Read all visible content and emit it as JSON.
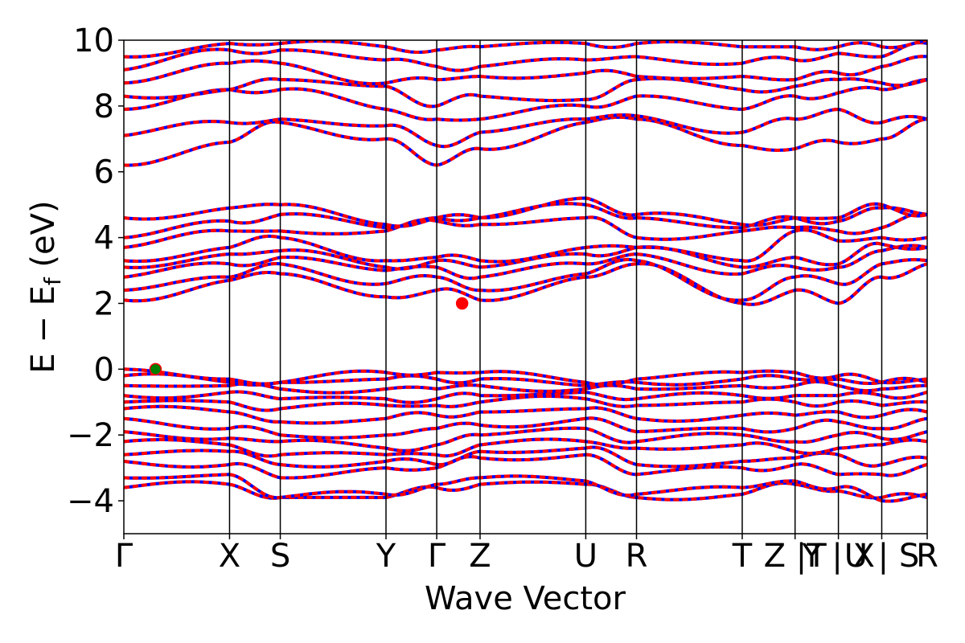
{
  "chart_data": {
    "type": "line",
    "title": "",
    "xlabel": "Wave Vector",
    "ylabel_main": "E − E",
    "ylabel_sub": "f",
    "ylabel_unit": " (eV)",
    "ylim": [
      -5,
      10
    ],
    "yticks": [
      10,
      8,
      6,
      4,
      2,
      0,
      -2,
      -4
    ],
    "ytick_labels": [
      "10",
      "8",
      "6",
      "4",
      "2",
      "0",
      "−2",
      "−4"
    ],
    "kpath_positions": [
      0,
      1.0,
      1.48,
      2.48,
      2.96,
      3.37,
      4.37,
      4.85,
      5.85,
      6.35,
      6.76,
      7.17,
      7.6
    ],
    "kpath_labels": [
      "Γ",
      "X",
      "S",
      "Y",
      "Γ",
      "Z",
      "U",
      "R",
      "T",
      "Z |T",
      "Y | X",
      "U | S",
      "R"
    ],
    "xlim": [
      0,
      7.6
    ],
    "grid": false,
    "legend": "none",
    "colors": {
      "band_primary": "#ff0000",
      "band_secondary": "#0000ff",
      "vbm_marker": "#008000",
      "cbm_marker": "#ff0000",
      "kline": "#000000"
    },
    "markers": [
      {
        "name": "VBM",
        "x": 0.3,
        "y": 0.0,
        "color": "#008000"
      },
      {
        "name": "CBM",
        "x": 3.2,
        "y": 2.0,
        "color": "#ff0000"
      }
    ],
    "bands": [
      {
        "family": "valence",
        "y": [
          -3.6,
          -3.5,
          -3.9,
          -3.9,
          -3.6,
          -3.5,
          -3.5,
          -3.9,
          -3.8,
          -3.5,
          -3.7,
          -3.9,
          -3.9
        ]
      },
      {
        "family": "valence",
        "y": [
          -3.3,
          -3.2,
          -3.9,
          -3.8,
          -3.5,
          -3.3,
          -3.4,
          -3.8,
          -3.6,
          -3.4,
          -3.6,
          -4.0,
          -3.8
        ]
      },
      {
        "family": "valence",
        "y": [
          -2.8,
          -2.9,
          -3.3,
          -3.0,
          -3.0,
          -2.7,
          -2.6,
          -3.2,
          -3.0,
          -2.9,
          -3.2,
          -3.2,
          -2.9
        ]
      },
      {
        "family": "valence",
        "y": [
          -2.6,
          -2.5,
          -2.9,
          -2.8,
          -2.9,
          -2.5,
          -2.4,
          -2.9,
          -2.8,
          -2.7,
          -2.6,
          -2.9,
          -2.7
        ]
      },
      {
        "family": "valence",
        "y": [
          -2.2,
          -2.3,
          -2.6,
          -2.6,
          -2.6,
          -2.3,
          -2.2,
          -2.4,
          -2.3,
          -2.5,
          -2.4,
          -2.3,
          -2.2
        ]
      },
      {
        "family": "valence",
        "y": [
          -1.9,
          -2.1,
          -2.2,
          -2.4,
          -2.3,
          -2.0,
          -1.8,
          -2.2,
          -2.0,
          -2.2,
          -2.0,
          -2.1,
          -1.9
        ]
      },
      {
        "family": "valence",
        "y": [
          -1.5,
          -1.8,
          -2.0,
          -2.0,
          -1.8,
          -1.7,
          -1.5,
          -1.9,
          -1.8,
          -1.8,
          -1.6,
          -1.8,
          -1.5
        ]
      },
      {
        "family": "valence",
        "y": [
          -1.2,
          -1.3,
          -1.6,
          -1.5,
          -1.4,
          -1.3,
          -1.2,
          -1.5,
          -1.4,
          -1.4,
          -1.3,
          -1.4,
          -1.3
        ]
      },
      {
        "family": "valence",
        "y": [
          -1.0,
          -1.0,
          -1.2,
          -1.1,
          -1.1,
          -1.0,
          -0.9,
          -1.1,
          -1.0,
          -1.0,
          -1.0,
          -1.1,
          -1.0
        ]
      },
      {
        "family": "valence",
        "y": [
          -0.8,
          -0.7,
          -0.9,
          -0.9,
          -0.9,
          -0.8,
          -0.7,
          -0.9,
          -0.8,
          -0.8,
          -0.8,
          -0.8,
          -0.7
        ]
      },
      {
        "family": "valence",
        "y": [
          -0.5,
          -0.5,
          -0.6,
          -0.6,
          -0.6,
          -0.5,
          -0.6,
          -0.6,
          -0.5,
          -0.5,
          -0.5,
          -0.6,
          -0.5
        ]
      },
      {
        "family": "valence",
        "y": [
          -0.2,
          -0.4,
          -0.4,
          -0.3,
          -0.3,
          -0.3,
          -0.5,
          -0.4,
          -0.3,
          -0.3,
          -0.3,
          -0.4,
          -0.4
        ]
      },
      {
        "family": "valence",
        "y": [
          0.0,
          -0.3,
          -0.4,
          -0.1,
          -0.1,
          -0.1,
          -0.4,
          -0.3,
          -0.1,
          -0.1,
          -0.2,
          -0.4,
          -0.3
        ]
      },
      {
        "family": "conduction",
        "y": [
          2.1,
          2.7,
          2.9,
          2.2,
          2.4,
          2.1,
          2.8,
          3.2,
          2.0,
          2.4,
          2.0,
          2.8,
          3.2
        ]
      },
      {
        "family": "conduction",
        "y": [
          2.4,
          2.8,
          3.2,
          2.6,
          2.8,
          2.4,
          2.9,
          3.3,
          2.1,
          2.8,
          2.6,
          3.2,
          3.3
        ]
      },
      {
        "family": "conduction",
        "y": [
          2.8,
          3.2,
          3.4,
          3.0,
          3.1,
          2.8,
          3.2,
          3.5,
          2.9,
          3.1,
          3.1,
          3.6,
          3.7
        ]
      },
      {
        "family": "conduction",
        "y": [
          3.1,
          3.5,
          3.6,
          3.1,
          3.3,
          3.1,
          3.5,
          3.7,
          3.1,
          3.4,
          3.2,
          3.8,
          3.7
        ]
      },
      {
        "family": "conduction",
        "y": [
          3.3,
          3.7,
          4.0,
          3.3,
          3.4,
          3.3,
          3.7,
          3.7,
          3.3,
          4.2,
          3.9,
          4.0,
          4.0
        ]
      },
      {
        "family": "conduction",
        "y": [
          3.7,
          4.2,
          4.2,
          4.2,
          4.5,
          4.4,
          4.6,
          4.0,
          4.2,
          4.3,
          4.2,
          4.3,
          4.7
        ]
      },
      {
        "family": "conduction",
        "y": [
          4.0,
          4.5,
          4.7,
          4.3,
          4.6,
          4.6,
          5.0,
          4.6,
          4.3,
          4.6,
          4.5,
          4.9,
          4.7
        ]
      },
      {
        "family": "conduction",
        "y": [
          4.6,
          4.9,
          5.0,
          4.4,
          4.6,
          4.6,
          5.2,
          4.7,
          4.4,
          4.6,
          4.6,
          5.0,
          4.7
        ]
      },
      {
        "family": "upper",
        "y": [
          6.2,
          6.9,
          7.5,
          7.0,
          6.2,
          6.7,
          7.5,
          7.6,
          6.8,
          6.7,
          6.9,
          7.0,
          7.6
        ]
      },
      {
        "family": "upper",
        "y": [
          7.1,
          7.5,
          7.6,
          7.4,
          6.8,
          7.2,
          7.6,
          7.7,
          7.2,
          7.6,
          7.9,
          7.5,
          7.6
        ]
      },
      {
        "family": "upper",
        "y": [
          7.9,
          8.5,
          8.5,
          7.9,
          7.6,
          7.6,
          8.0,
          8.3,
          7.9,
          8.3,
          8.4,
          8.5,
          8.8
        ]
      },
      {
        "family": "upper",
        "y": [
          8.3,
          8.5,
          8.8,
          8.6,
          8.0,
          8.3,
          8.2,
          8.8,
          8.5,
          8.6,
          8.8,
          8.7,
          8.8
        ]
      },
      {
        "family": "upper",
        "y": [
          8.7,
          9.3,
          9.3,
          8.7,
          8.8,
          8.9,
          9.0,
          8.9,
          8.9,
          8.8,
          9.0,
          9.2,
          9.5
        ]
      },
      {
        "family": "upper",
        "y": [
          9.1,
          9.7,
          9.7,
          9.4,
          9.2,
          9.2,
          9.4,
          9.5,
          9.3,
          9.4,
          9.6,
          9.5,
          9.9
        ]
      },
      {
        "family": "upper",
        "y": [
          9.5,
          9.9,
          9.9,
          9.8,
          9.7,
          9.8,
          9.9,
          9.9,
          9.8,
          9.8,
          9.8,
          9.8,
          10.0
        ]
      }
    ]
  }
}
